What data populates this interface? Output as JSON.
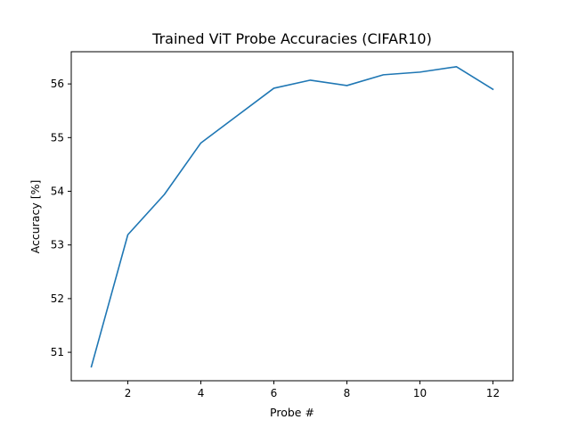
{
  "chart_data": {
    "type": "line",
    "title": "Trained ViT Probe Accuracies (CIFAR10)",
    "xlabel": "Probe #",
    "ylabel": "Accuracy [%]",
    "xlim": [
      0.45,
      12.55
    ],
    "ylim": [
      50.47,
      56.6
    ],
    "x_ticks": [
      2,
      4,
      6,
      8,
      10,
      12
    ],
    "y_ticks": [
      51,
      52,
      53,
      54,
      55,
      56
    ],
    "grid": false,
    "series": [
      {
        "color": "#1f77b4",
        "x": [
          1,
          2,
          3,
          4,
          5,
          6,
          7,
          8,
          9,
          10,
          11,
          12
        ],
        "y": [
          50.73,
          53.19,
          53.94,
          54.9,
          55.41,
          55.92,
          56.07,
          55.97,
          56.17,
          56.22,
          56.32,
          55.9
        ]
      }
    ]
  }
}
